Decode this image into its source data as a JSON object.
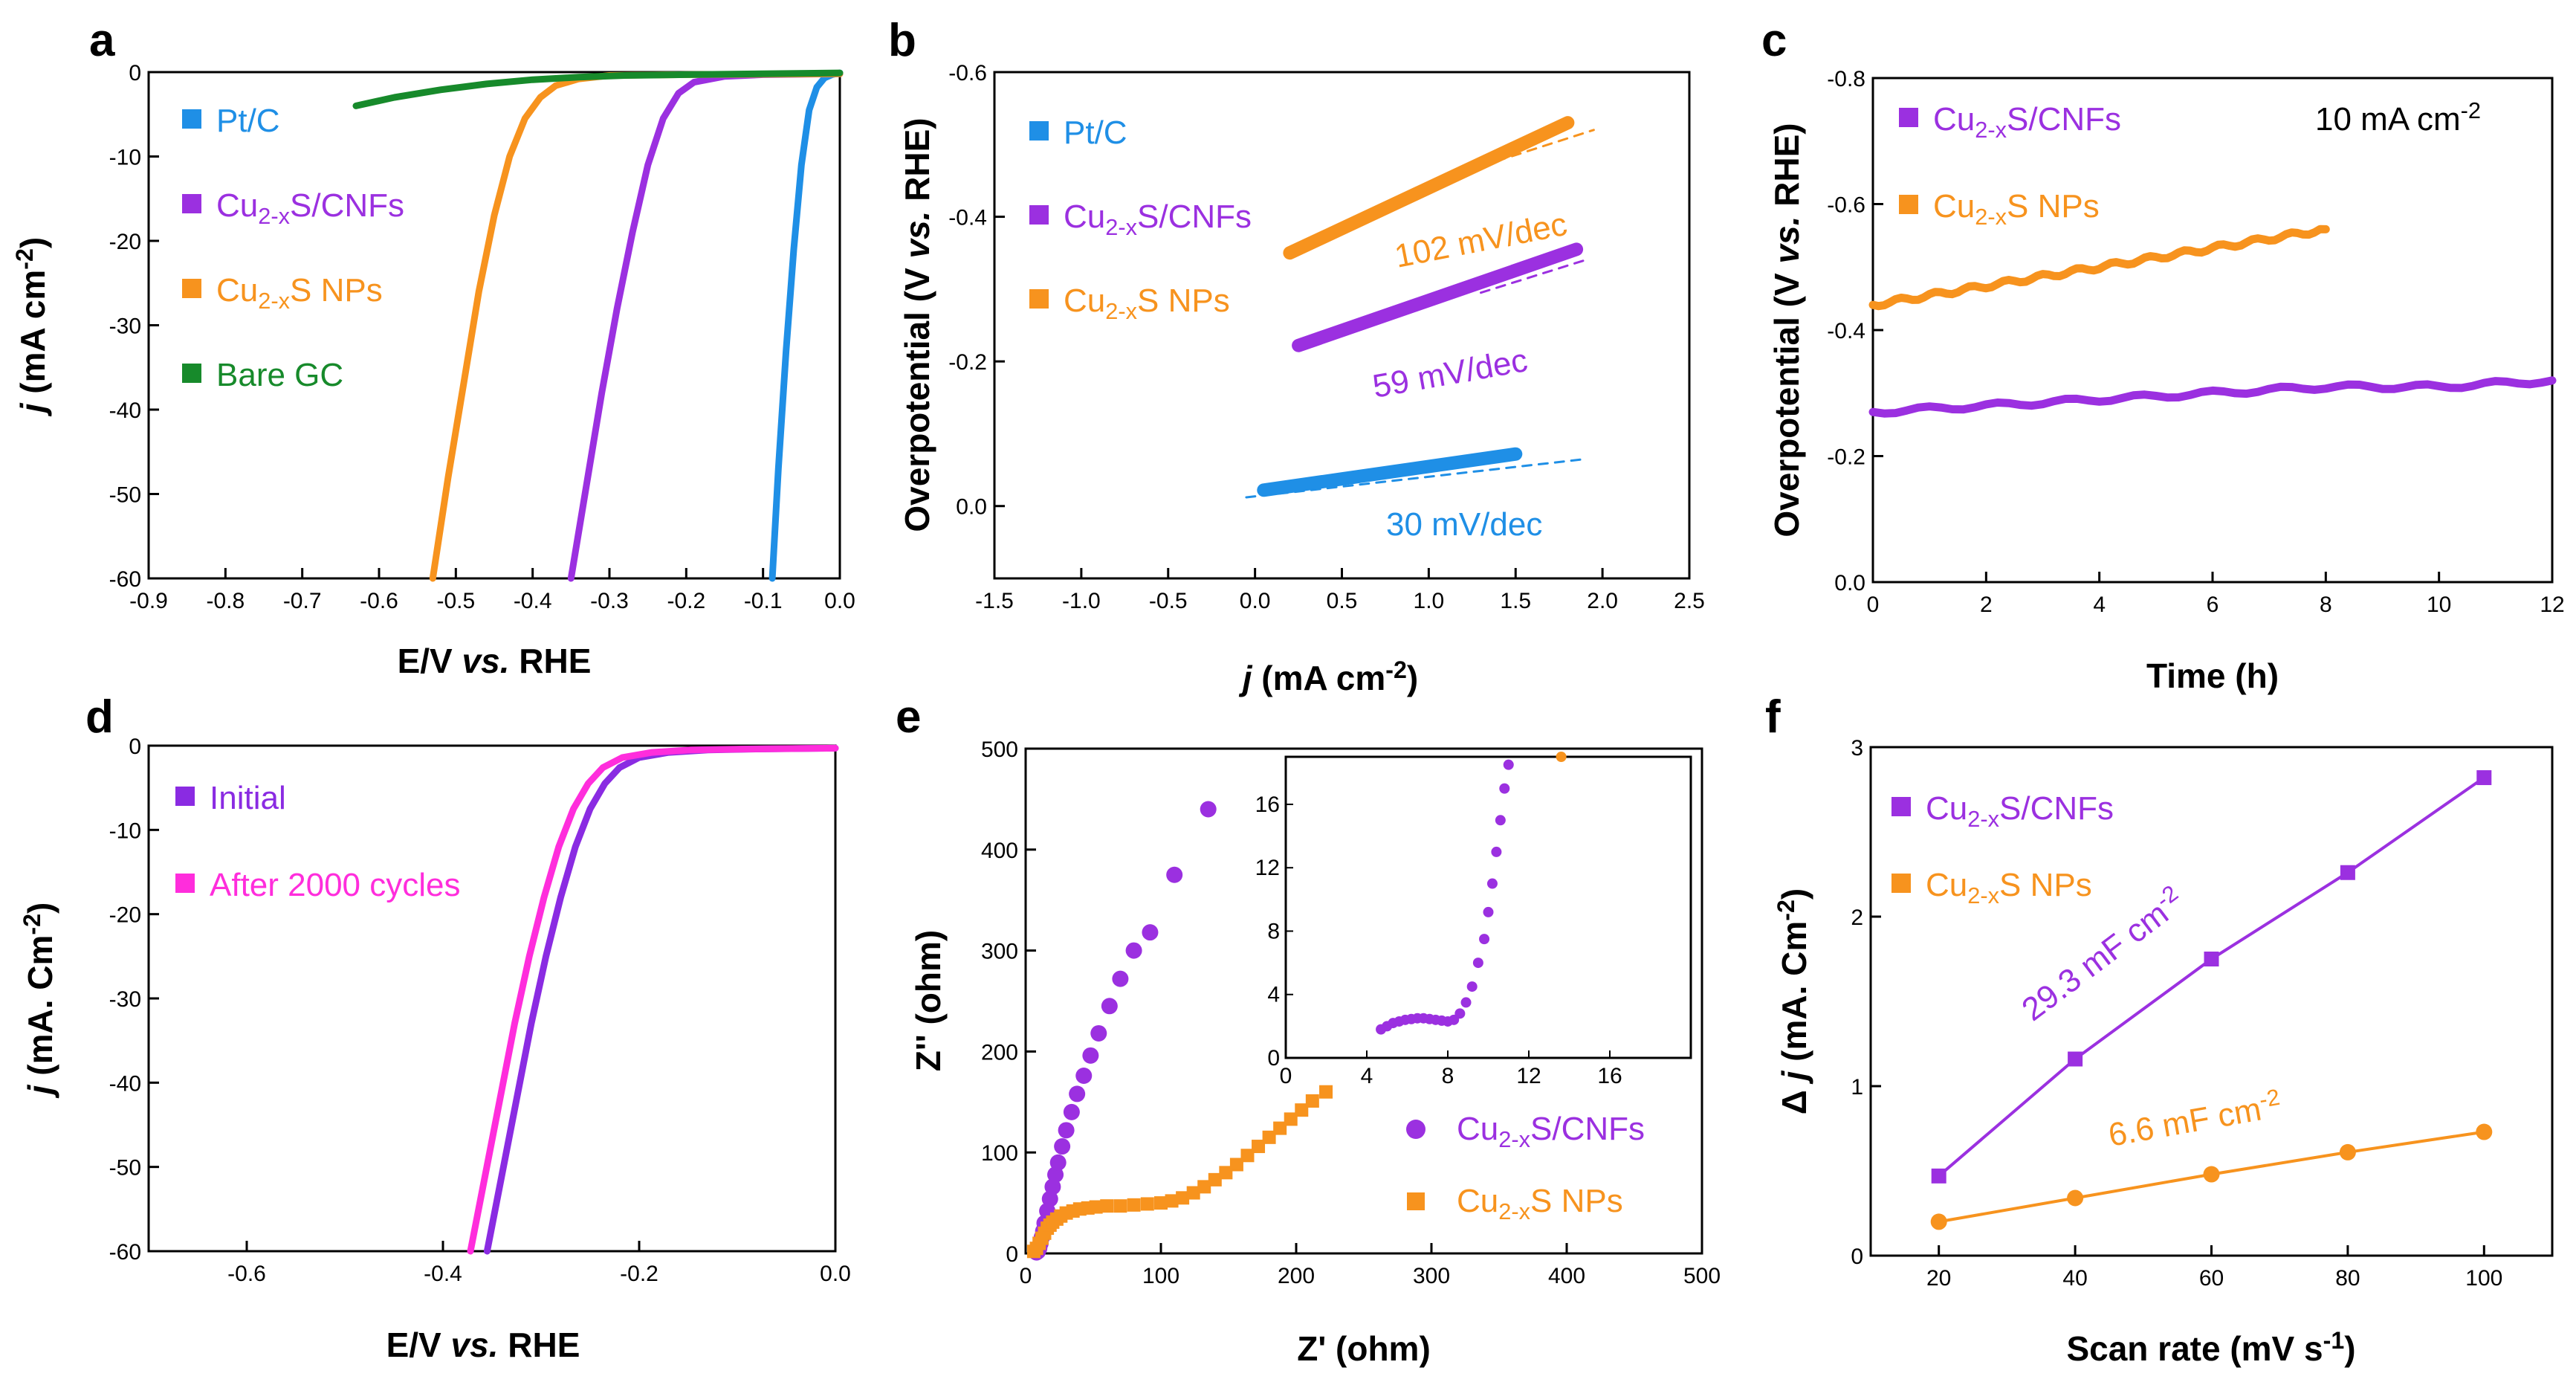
{
  "figure": {
    "panel_labels": [
      "a",
      "b",
      "c",
      "d",
      "e",
      "f"
    ]
  },
  "chart_data": [
    {
      "id": "a",
      "type": "line",
      "xlabel": "E/V vs. RHE",
      "ylabel": "j (mA cm-2)",
      "xlim": [
        -0.9,
        0.0
      ],
      "ylim": [
        -60,
        0
      ],
      "xticks": [
        "-0.9",
        "-0.8",
        "-0.7",
        "-0.6",
        "-0.5",
        "-0.4",
        "-0.3",
        "-0.2",
        "-0.1",
        "0.0"
      ],
      "yticks": [
        "0",
        "-10",
        "-20",
        "-30",
        "-40",
        "-50",
        "-60"
      ],
      "legend": [
        {
          "base": "Pt/C",
          "color": "#1f8fe6"
        },
        {
          "base": "Cu",
          "sub": "2-x",
          "rest": "S/CNFs",
          "color": "#9b30e0"
        },
        {
          "base": "Cu",
          "sub": "2-x",
          "rest": "S NPs",
          "color": "#f7931e"
        },
        {
          "base": "Bare GC",
          "color": "#178a2b"
        }
      ],
      "series": [
        {
          "name": "Pt/C",
          "color": "#1f8fe6",
          "x": [
            -0.088,
            -0.08,
            -0.07,
            -0.06,
            -0.05,
            -0.04,
            -0.03,
            -0.02,
            -0.01,
            0.0
          ],
          "y": [
            -60,
            -47,
            -33,
            -21,
            -11,
            -4.5,
            -1.8,
            -0.7,
            -0.3,
            -0.1
          ]
        },
        {
          "name": "Cu2-xS/CNFs",
          "color": "#9b30e0",
          "x": [
            -0.35,
            -0.33,
            -0.31,
            -0.29,
            -0.27,
            -0.25,
            -0.23,
            -0.21,
            -0.19,
            -0.15,
            -0.1,
            0.0
          ],
          "y": [
            -60,
            -49,
            -38,
            -28,
            -19,
            -11,
            -5.5,
            -2.5,
            -1.2,
            -0.5,
            -0.3,
            -0.2
          ]
        },
        {
          "name": "Cu2-xS NPs",
          "color": "#f7931e",
          "x": [
            -0.53,
            -0.51,
            -0.49,
            -0.47,
            -0.45,
            -0.43,
            -0.41,
            -0.39,
            -0.37,
            -0.34,
            -0.3,
            -0.2,
            0.0
          ],
          "y": [
            -60,
            -48,
            -37,
            -26,
            -17,
            -10,
            -5.5,
            -3,
            -1.6,
            -0.8,
            -0.4,
            -0.3,
            -0.2
          ]
        },
        {
          "name": "Bare GC",
          "color": "#178a2b",
          "x": [
            -0.63,
            -0.58,
            -0.52,
            -0.46,
            -0.4,
            -0.34,
            -0.28,
            -0.2,
            -0.1,
            0.0
          ],
          "y": [
            -4,
            -3,
            -2.1,
            -1.4,
            -0.9,
            -0.6,
            -0.4,
            -0.3,
            -0.2,
            -0.1
          ]
        }
      ]
    },
    {
      "id": "b",
      "type": "line",
      "xlabel": "j (mA cm-2)",
      "ylabel": "Overpotential (V vs. RHE)",
      "xlim": [
        -1.5,
        2.5
      ],
      "ylim": [
        0.1,
        -0.6
      ],
      "xticks": [
        "-1.5",
        "-1.0",
        "-0.5",
        "0.0",
        "0.5",
        "1.0",
        "1.5",
        "2.0",
        "2.5"
      ],
      "yticks": [
        "-0.6",
        "-0.4",
        "-0.2",
        "0.0"
      ],
      "legend": [
        {
          "base": "Pt/C",
          "color": "#1f8fe6"
        },
        {
          "base": "Cu",
          "sub": "2-x",
          "rest": "S/CNFs",
          "color": "#9b30e0"
        },
        {
          "base": "Cu",
          "sub": "2-x",
          "rest": "S NPs",
          "color": "#f7931e"
        }
      ],
      "series": [
        {
          "name": "Pt/C",
          "color": "#1f8fe6",
          "x": [
            0.05,
            1.5
          ],
          "y": [
            -0.022,
            -0.072
          ],
          "fit": {
            "x": [
              -0.05,
              1.9
            ],
            "y": [
              -0.012,
              -0.065
            ]
          }
        },
        {
          "name": "Cu2-xS/CNFs",
          "color": "#9b30e0",
          "x": [
            0.25,
            1.85
          ],
          "y": [
            -0.222,
            -0.355
          ],
          "fit": {
            "x": [
              1.3,
              1.9
            ],
            "y": [
              -0.295,
              -0.34
            ]
          }
        },
        {
          "name": "Cu2-xS NPs",
          "color": "#f7931e",
          "x": [
            0.2,
            1.8
          ],
          "y": [
            -0.35,
            -0.53
          ],
          "fit": {
            "x": [
              1.3,
              1.95
            ],
            "y": [
              -0.47,
              -0.52
            ]
          }
        }
      ],
      "annotations": [
        {
          "text": "102 mV/dec",
          "color": "#f7931e"
        },
        {
          "text": "59 mV/dec",
          "color": "#9b30e0"
        },
        {
          "text": "30 mV/dec",
          "color": "#1f8fe6"
        }
      ]
    },
    {
      "id": "c",
      "type": "line",
      "xlabel": "Time (h)",
      "ylabel": "Overpotential (V vs. RHE)",
      "xlim": [
        0,
        12
      ],
      "ylim": [
        0.0,
        -0.8
      ],
      "xticks": [
        "0",
        "2",
        "4",
        "6",
        "8",
        "10",
        "12"
      ],
      "yticks": [
        "-0.8",
        "-0.6",
        "-0.4",
        "-0.2",
        "0.0"
      ],
      "legend": [
        {
          "base": "Cu",
          "sub": "2-x",
          "rest": "S/CNFs",
          "color": "#9b30e0"
        },
        {
          "base": "Cu",
          "sub": "2-x",
          "rest": "S NPs",
          "color": "#f7931e"
        }
      ],
      "annotation": {
        "base": "10 mA cm",
        "sup": "-2"
      },
      "series": [
        {
          "name": "Cu2-xS/CNFs",
          "color": "#9b30e0",
          "x": [
            0,
            2,
            4,
            6,
            8,
            10,
            12
          ],
          "y": [
            -0.27,
            -0.28,
            -0.29,
            -0.3,
            -0.31,
            -0.31,
            -0.32
          ]
        },
        {
          "name": "Cu2-xS NPs",
          "color": "#f7931e",
          "x": [
            0,
            1,
            2,
            3,
            4,
            5,
            6,
            7,
            8
          ],
          "y": [
            -0.44,
            -0.455,
            -0.47,
            -0.485,
            -0.5,
            -0.515,
            -0.53,
            -0.545,
            -0.56
          ]
        }
      ]
    },
    {
      "id": "d",
      "type": "line",
      "xlabel": "E/V vs. RHE",
      "ylabel": "j (mA. Cm-2)",
      "xlim": [
        -0.7,
        0.0
      ],
      "ylim": [
        -60,
        0
      ],
      "xticks": [
        "-0.6",
        "-0.4",
        "-0.2",
        "0.0"
      ],
      "yticks": [
        "0",
        "-10",
        "-20",
        "-30",
        "-40",
        "-50",
        "-60"
      ],
      "legend": [
        {
          "base": "Initial",
          "color": "#8a2be2"
        },
        {
          "base": "After 2000 cycles",
          "color": "#ff2ddc"
        }
      ],
      "series": [
        {
          "name": "Initial",
          "color": "#8a2be2",
          "x": [
            -0.355,
            -0.34,
            -0.325,
            -0.31,
            -0.295,
            -0.28,
            -0.265,
            -0.25,
            -0.235,
            -0.22,
            -0.2,
            -0.17,
            -0.13,
            -0.08,
            0.0
          ],
          "y": [
            -60,
            -51,
            -42,
            -33,
            -25,
            -18,
            -12,
            -7.5,
            -4.5,
            -2.6,
            -1.4,
            -0.8,
            -0.5,
            -0.4,
            -0.3
          ]
        },
        {
          "name": "After 2000 cycles",
          "color": "#ff2ddc",
          "x": [
            -0.372,
            -0.357,
            -0.342,
            -0.327,
            -0.312,
            -0.297,
            -0.282,
            -0.267,
            -0.252,
            -0.237,
            -0.217,
            -0.187,
            -0.147,
            -0.09,
            0.0
          ],
          "y": [
            -60,
            -51,
            -42,
            -33,
            -25,
            -18,
            -12,
            -7.5,
            -4.5,
            -2.6,
            -1.4,
            -0.8,
            -0.5,
            -0.4,
            -0.3
          ]
        }
      ]
    },
    {
      "id": "e",
      "type": "scatter",
      "xlabel": "Z' (ohm)",
      "ylabel": "Z'' (ohm)",
      "xlim": [
        0,
        500
      ],
      "ylim": [
        0,
        500
      ],
      "xticks": [
        "0",
        "100",
        "200",
        "300",
        "400",
        "500"
      ],
      "yticks": [
        "0",
        "100",
        "200",
        "300",
        "400",
        "500"
      ],
      "legend": [
        {
          "base": "Cu",
          "sub": "2-x",
          "rest": "S/CNFs",
          "color": "#9b30e0"
        },
        {
          "base": "Cu",
          "sub": "2-x",
          "rest": "S NPs",
          "color": "#f7931e"
        }
      ],
      "series": [
        {
          "name": "Cu2-xS/CNFs",
          "color": "#9b30e0",
          "marker": "circle",
          "x": [
            8,
            9,
            10,
            11,
            12,
            13,
            14,
            16,
            18,
            20,
            22,
            24,
            27,
            30,
            34,
            38,
            43,
            48,
            54,
            62,
            70,
            80,
            92,
            110,
            135
          ],
          "y": [
            1,
            2,
            5,
            10,
            16,
            22,
            30,
            42,
            54,
            66,
            78,
            90,
            106,
            122,
            140,
            158,
            176,
            196,
            218,
            245,
            272,
            300,
            318,
            375,
            440
          ]
        },
        {
          "name": "Cu2-xS NPs",
          "color": "#f7931e",
          "marker": "square",
          "x": [
            6,
            8,
            10,
            12,
            14,
            16,
            18,
            20,
            23,
            26,
            30,
            35,
            40,
            46,
            52,
            60,
            70,
            80,
            90,
            100,
            108,
            116,
            124,
            132,
            140,
            148,
            156,
            164,
            172,
            180,
            188,
            196,
            204,
            212,
            222
          ],
          "y": [
            2,
            5,
            10,
            15,
            20,
            25,
            28,
            31,
            34,
            37,
            40,
            42,
            44,
            45,
            46,
            47,
            47,
            48,
            49,
            50,
            52,
            55,
            60,
            66,
            73,
            80,
            88,
            97,
            106,
            115,
            124,
            133,
            142,
            151,
            160
          ]
        }
      ],
      "inset": {
        "xlim": [
          0,
          20
        ],
        "ylim": [
          0,
          19
        ],
        "xticks": [
          "0",
          "4",
          "8",
          "12",
          "16"
        ],
        "yticks": [
          "0",
          "4",
          "8",
          "12",
          "16"
        ],
        "series": [
          {
            "name": "Cu2-xS/CNFs",
            "color": "#9b30e0",
            "x": [
              4.7,
              5.0,
              5.3,
              5.6,
              5.9,
              6.2,
              6.5,
              6.8,
              7.1,
              7.4,
              7.7,
              8.0,
              8.3,
              8.6,
              8.9,
              9.2,
              9.5,
              9.8,
              10.0,
              10.2,
              10.4,
              10.6,
              10.8,
              11.0
            ],
            "y": [
              1.8,
              2.0,
              2.2,
              2.3,
              2.4,
              2.45,
              2.5,
              2.5,
              2.45,
              2.4,
              2.35,
              2.3,
              2.4,
              2.8,
              3.5,
              4.5,
              6.0,
              7.5,
              9.2,
              11.0,
              13.0,
              15.0,
              17.0,
              18.5
            ]
          },
          {
            "name": "Cu2-xS NPs",
            "color": "#f7931e",
            "x": [
              13.6
            ],
            "y": [
              19.0
            ]
          }
        ]
      }
    },
    {
      "id": "f",
      "type": "line",
      "xlabel": "Scan rate (mV s-1)",
      "ylabel": "Δ j (mA. Cm-2)",
      "xlim": [
        10,
        110
      ],
      "ylim": [
        0,
        3
      ],
      "xticks": [
        "20",
        "40",
        "60",
        "80",
        "100"
      ],
      "yticks": [
        "0",
        "1",
        "2",
        "3"
      ],
      "legend": [
        {
          "base": "Cu",
          "sub": "2-x",
          "rest": "S/CNFs",
          "color": "#9b30e0"
        },
        {
          "base": "Cu",
          "sub": "2-x",
          "rest": "S NPs",
          "color": "#f7931e"
        }
      ],
      "series": [
        {
          "name": "Cu2-xS/CNFs",
          "color": "#9b30e0",
          "marker": "square",
          "x": [
            20,
            40,
            60,
            80,
            100
          ],
          "y": [
            0.47,
            1.16,
            1.75,
            2.26,
            2.82
          ]
        },
        {
          "name": "Cu2-xS NPs",
          "color": "#f7931e",
          "marker": "circle",
          "x": [
            20,
            40,
            60,
            80,
            100
          ],
          "y": [
            0.2,
            0.34,
            0.48,
            0.61,
            0.73
          ]
        }
      ],
      "annotations": [
        {
          "base": "29.3 mF cm",
          "sup": "-2",
          "color": "#9b30e0"
        },
        {
          "base": "6.6 mF cm",
          "sup": "-2",
          "color": "#f7931e"
        }
      ]
    }
  ]
}
